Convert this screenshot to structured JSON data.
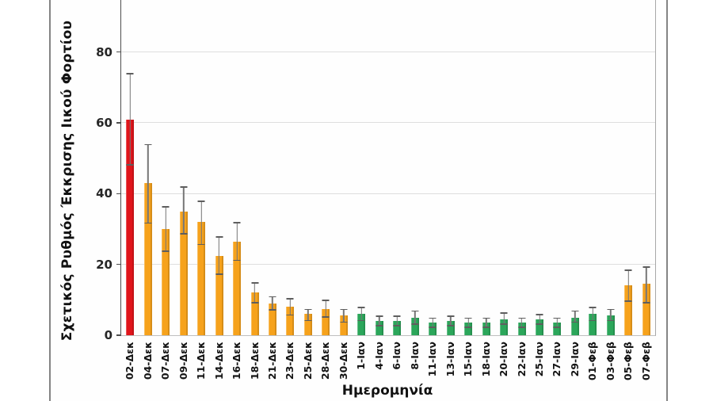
{
  "figure": {
    "background": "#ffffff",
    "frame_color": "#848484"
  },
  "chart_data": {
    "type": "bar",
    "title": "",
    "xlabel": "Ημερομηνία",
    "ylabel": "Σχετικός Ρυθμός Έκκρισης Ιικού Φορτίου",
    "ylim": [
      0,
      94.7
    ],
    "yticks": [
      0,
      20,
      40,
      60,
      80
    ],
    "grid": true,
    "legend": "none",
    "error_bars": true,
    "categories": [
      "02-Δεκ",
      "04-Δεκ",
      "07-Δεκ",
      "09-Δεκ",
      "11-Δεκ",
      "14-Δεκ",
      "16-Δεκ",
      "18-Δεκ",
      "21-Δεκ",
      "23-Δεκ",
      "25-Δεκ",
      "28-Δεκ",
      "30-Δεκ",
      "1-Ιαν",
      "4-Ιαν",
      "6-Ιαν",
      "8-Ιαν",
      "11-Ιαν",
      "13-Ιαν",
      "15-Ιαν",
      "18-Ιαν",
      "20-Ιαν",
      "22-Ιαν",
      "25-Ιαν",
      "27-Ιαν",
      "29-Ιαν",
      "01-Φεβ",
      "03-Φεβ",
      "05-Φεβ",
      "07-Φεβ"
    ],
    "values": [
      61,
      43,
      30,
      35,
      32,
      22.5,
      26.5,
      12,
      9,
      8,
      6,
      7.5,
      5.5,
      6,
      4,
      4,
      5,
      3.5,
      4,
      3.5,
      3.5,
      4.5,
      3.5,
      4.5,
      3.5,
      5,
      6,
      5.5,
      14,
      14.5
    ],
    "error_high": [
      74,
      54,
      36.5,
      42,
      38,
      28,
      32,
      15,
      11,
      10.5,
      7.5,
      10,
      7.5,
      8,
      5.5,
      5.5,
      7,
      5,
      5.5,
      5,
      5,
      6.5,
      5,
      6,
      5,
      7,
      8,
      7.5,
      18.5,
      19.5
    ],
    "error_low": [
      48,
      31.5,
      23.5,
      28.5,
      25.5,
      17,
      21,
      9,
      7,
      5.5,
      4,
      5,
      3.5,
      4,
      2.5,
      2.5,
      3,
      2,
      2.5,
      2,
      2,
      3,
      2,
      3,
      2,
      3.5,
      4,
      4,
      9.5,
      9
    ],
    "bar_color_keys": [
      "red",
      "orange",
      "orange",
      "orange",
      "orange",
      "orange",
      "orange",
      "orange",
      "orange",
      "orange",
      "orange",
      "orange",
      "orange",
      "green",
      "green",
      "green",
      "green",
      "green",
      "green",
      "green",
      "green",
      "green",
      "green",
      "green",
      "green",
      "green",
      "green",
      "green",
      "orange",
      "orange"
    ],
    "palette": {
      "red": "#e0151b",
      "orange": "#f6a21c",
      "green": "#2ba65a"
    },
    "error_bar_color": "#767676",
    "gridline_color": "#dedede"
  }
}
